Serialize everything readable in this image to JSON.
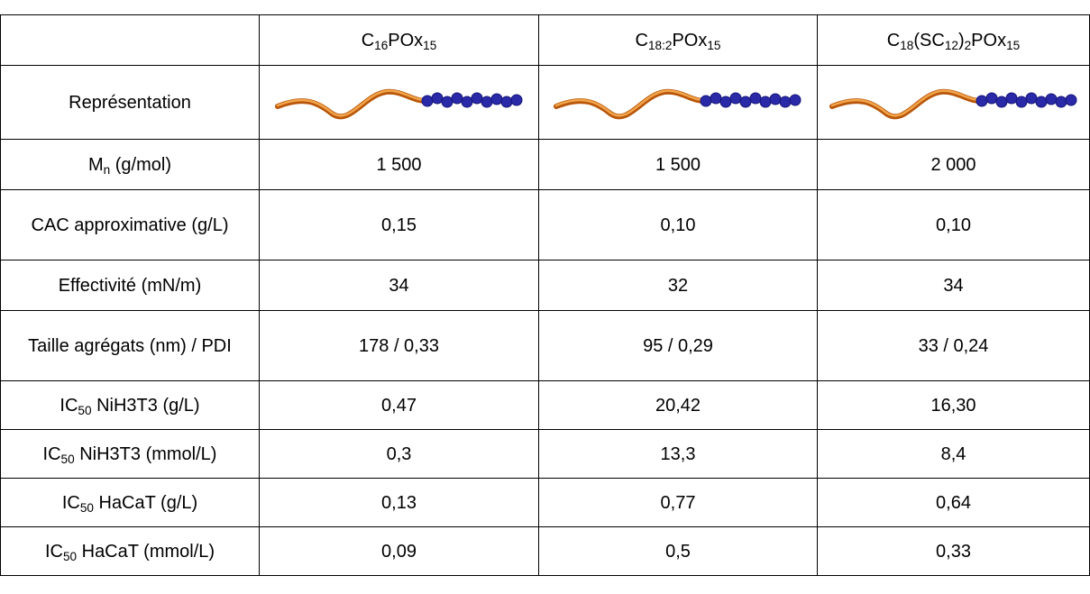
{
  "table": {
    "columns": [
      [
        "C",
        {
          "sub": "16"
        },
        "POx",
        {
          "sub": "15"
        }
      ],
      [
        "C",
        {
          "sub": "18:2"
        },
        "POx",
        {
          "sub": "15"
        }
      ],
      [
        "C",
        {
          "sub": "18"
        },
        "(SC",
        {
          "sub": "12"
        },
        ")",
        {
          "sub": "2"
        },
        "POx",
        {
          "sub": "15"
        }
      ]
    ],
    "rows": [
      {
        "label": [
          "Représentation"
        ]
      },
      {
        "label": [
          "M",
          {
            "sub": "n"
          },
          " (g/mol)"
        ],
        "cells": [
          "1 500",
          "1 500",
          "2 000"
        ]
      },
      {
        "label": [
          "CAC approximative (g/L)"
        ],
        "cells": [
          "0,15",
          "0,10",
          "0,10"
        ]
      },
      {
        "label": [
          "Effectivité (mN/m)"
        ],
        "cells": [
          "34",
          "32",
          "34"
        ]
      },
      {
        "label": [
          "Taille agrégats (nm) / PDI"
        ],
        "cells": [
          "178 / 0,33",
          "95 / 0,29",
          "33 / 0,24"
        ]
      },
      {
        "label": [
          "IC",
          {
            "sub": "50"
          },
          " NiH3T3 (g/L)"
        ],
        "cells": [
          "0,47",
          "20,42",
          "16,30"
        ]
      },
      {
        "label": [
          "IC",
          {
            "sub": "50"
          },
          " NiH3T3 (mmol/L)"
        ],
        "cells": [
          "0,3",
          "13,3",
          "8,4"
        ]
      },
      {
        "label": [
          "IC",
          {
            "sub": "50"
          },
          " HaCaT (g/L)"
        ],
        "cells": [
          "0,13",
          "0,77",
          "0,64"
        ]
      },
      {
        "label": [
          "IC",
          {
            "sub": "50"
          },
          " HaCaT (mmol/L)"
        ],
        "cells": [
          "0,09",
          "0,5",
          "0,33"
        ]
      }
    ]
  }
}
